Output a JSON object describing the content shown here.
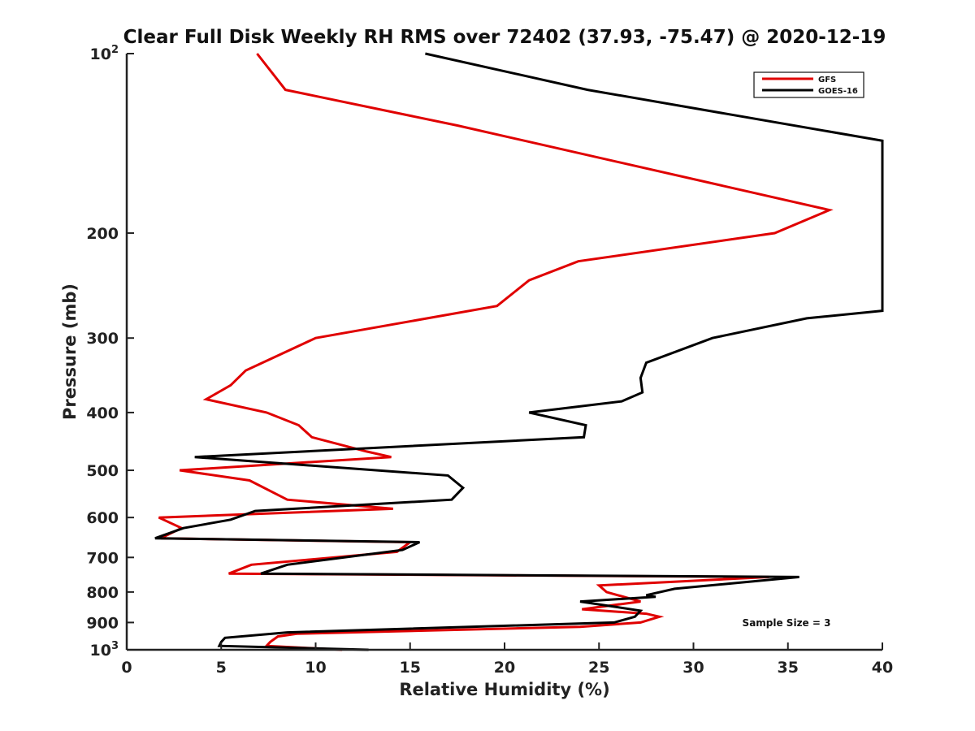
{
  "chart_data": {
    "type": "line",
    "title": "Clear Full Disk Weekly RH RMS over 72402 (37.93, -75.47) @ 2020-12-19",
    "xlabel": "Relative Humidity (%)",
    "ylabel": "Pressure (mb)",
    "xlim": [
      0,
      40
    ],
    "ylim": [
      100,
      1000
    ],
    "yscale": "log",
    "y_reversed": true,
    "x_ticks": [
      "0",
      "5",
      "10",
      "15",
      "20",
      "25",
      "30",
      "35",
      "40"
    ],
    "y_ticks": [
      {
        "value": 100,
        "base": "10",
        "exp": "2"
      },
      {
        "value": 200,
        "label": "200"
      },
      {
        "value": 300,
        "label": "300"
      },
      {
        "value": 400,
        "label": "400"
      },
      {
        "value": 500,
        "label": "500"
      },
      {
        "value": 600,
        "label": "600"
      },
      {
        "value": 700,
        "label": "700"
      },
      {
        "value": 800,
        "label": "800"
      },
      {
        "value": 900,
        "label": "900"
      },
      {
        "value": 1000,
        "base": "10",
        "exp": "3"
      }
    ],
    "legend_position": "top-right",
    "annotation": "Sample Size = 3",
    "series": [
      {
        "name": "GFS",
        "color": "#e00000",
        "points": [
          [
            6.9,
            100
          ],
          [
            8.4,
            115
          ],
          [
            17.5,
            132
          ],
          [
            37.2,
            183
          ],
          [
            34.3,
            200
          ],
          [
            23.9,
            223
          ],
          [
            21.3,
            240
          ],
          [
            19.6,
            265
          ],
          [
            10.0,
            300
          ],
          [
            6.3,
            340
          ],
          [
            5.5,
            360
          ],
          [
            4.2,
            380
          ],
          [
            7.4,
            400
          ],
          [
            9.1,
            420
          ],
          [
            9.8,
            440
          ],
          [
            12.7,
            465
          ],
          [
            14.0,
            475
          ],
          [
            2.8,
            500
          ],
          [
            6.5,
            520
          ],
          [
            8.5,
            560
          ],
          [
            14.1,
            580
          ],
          [
            1.7,
            600
          ],
          [
            2.9,
            625
          ],
          [
            1.8,
            650
          ],
          [
            15.0,
            660
          ],
          [
            14.3,
            685
          ],
          [
            11.0,
            700
          ],
          [
            6.6,
            720
          ],
          [
            5.4,
            745
          ],
          [
            34.0,
            755
          ],
          [
            25.0,
            780
          ],
          [
            25.4,
            800
          ],
          [
            27.2,
            830
          ],
          [
            24.1,
            855
          ],
          [
            27.5,
            870
          ],
          [
            28.2,
            880
          ],
          [
            27.2,
            900
          ],
          [
            24.0,
            915
          ],
          [
            9.0,
            940
          ],
          [
            8.0,
            950
          ],
          [
            7.6,
            970
          ],
          [
            7.4,
            985
          ],
          [
            11.4,
            1000
          ]
        ]
      },
      {
        "name": "GOES-16",
        "color": "#000000",
        "points": [
          [
            15.8,
            100
          ],
          [
            24.4,
            115
          ],
          [
            40.0,
            140
          ],
          [
            40.0,
            270
          ],
          [
            36.0,
            278
          ],
          [
            31.0,
            300
          ],
          [
            27.5,
            330
          ],
          [
            27.2,
            350
          ],
          [
            27.3,
            370
          ],
          [
            26.2,
            383
          ],
          [
            21.3,
            400
          ],
          [
            24.3,
            420
          ],
          [
            24.2,
            440
          ],
          [
            3.6,
            475
          ],
          [
            17.0,
            510
          ],
          [
            17.8,
            535
          ],
          [
            17.2,
            560
          ],
          [
            6.8,
            585
          ],
          [
            5.5,
            605
          ],
          [
            3.0,
            625
          ],
          [
            1.5,
            650
          ],
          [
            15.5,
            660
          ],
          [
            14.6,
            680
          ],
          [
            8.5,
            720
          ],
          [
            7.1,
            745
          ],
          [
            35.6,
            755
          ],
          [
            29.0,
            790
          ],
          [
            27.5,
            810
          ],
          [
            28.0,
            815
          ],
          [
            24.0,
            830
          ],
          [
            27.2,
            860
          ],
          [
            26.9,
            880
          ],
          [
            25.8,
            900
          ],
          [
            8.5,
            935
          ],
          [
            5.2,
            955
          ],
          [
            5.0,
            970
          ],
          [
            4.9,
            985
          ],
          [
            12.8,
            1000
          ]
        ]
      }
    ]
  }
}
